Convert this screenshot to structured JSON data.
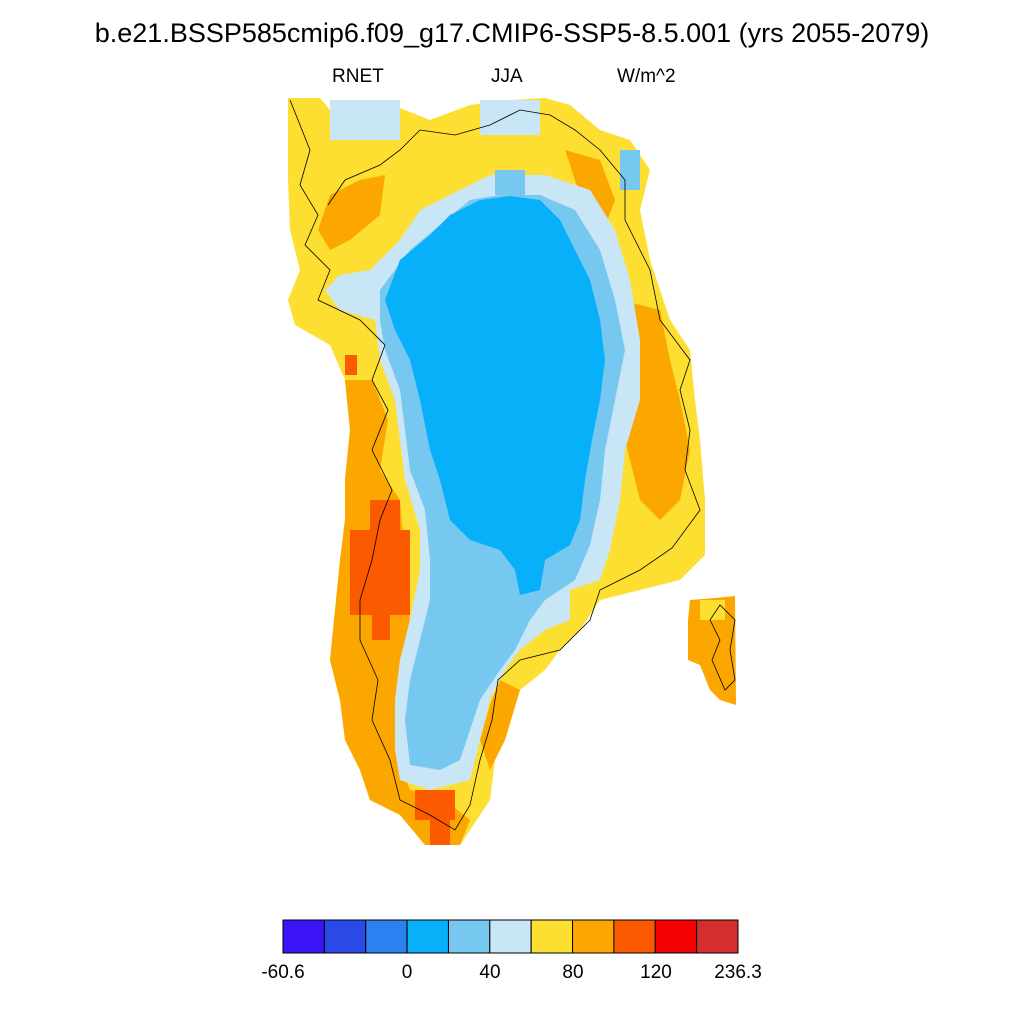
{
  "title": "b.e21.BSSP585cmip6.f09_g17.CMIP6-SSP5-8.5.001 (yrs 2055-2079)",
  "subtitle": {
    "variable": "RNET",
    "season": "JJA",
    "units": "W/m^2"
  },
  "colorbar": {
    "colors": [
      "#3c14f5",
      "#2a4ae8",
      "#2a82f0",
      "#08b0fa",
      "#76c8f0",
      "#c8e6f6",
      "#fddf32",
      "#fca700",
      "#fc5a00",
      "#f50202",
      "#d42e2e"
    ],
    "labels": [
      "-60.6",
      "0",
      "40",
      "80",
      "120",
      "236.3"
    ]
  },
  "map": {
    "region": "Greenland",
    "field_colors": [
      "#08b0fa",
      "#76c8f0",
      "#c8e6f6",
      "#fddf32",
      "#fca700",
      "#fc5a00"
    ]
  }
}
